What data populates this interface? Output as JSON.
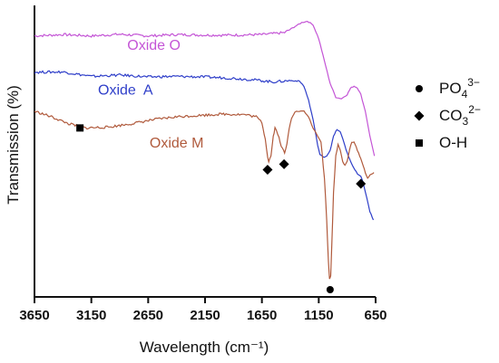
{
  "chart_data": {
    "type": "line",
    "title": "",
    "xlabel": "Wavelength (cm⁻¹)",
    "ylabel": "Transmission (%)",
    "x_reversed": true,
    "xlim": [
      3650,
      650
    ],
    "ylim": [
      0,
      100
    ],
    "x_ticks": [
      3650,
      3150,
      2650,
      2150,
      1650,
      1150,
      650
    ],
    "x_tick_labels": [
      "3650",
      "3150",
      "2650",
      "2150",
      "1650",
      "1150",
      "650"
    ],
    "y_ticks_shown": false,
    "grid": false,
    "series": [
      {
        "name": "Oxide O",
        "color": "#c455d6",
        "label_at": [
          2600,
          86
        ],
        "points": [
          [
            3650,
            91
          ],
          [
            3400,
            91.5
          ],
          [
            3150,
            91
          ],
          [
            2900,
            91.6
          ],
          [
            2650,
            91
          ],
          [
            2400,
            91.5
          ],
          [
            2150,
            91.3
          ],
          [
            1900,
            91.3
          ],
          [
            1650,
            91.5
          ],
          [
            1450,
            92.2
          ],
          [
            1300,
            95.8
          ],
          [
            1250,
            96.3
          ],
          [
            1200,
            95
          ],
          [
            1150,
            90
          ],
          [
            1100,
            82
          ],
          [
            1050,
            74
          ],
          [
            1000,
            69
          ],
          [
            950,
            68.5
          ],
          [
            900,
            70
          ],
          [
            870,
            72.3
          ],
          [
            840,
            73
          ],
          [
            810,
            72.4
          ],
          [
            780,
            70
          ],
          [
            740,
            64
          ],
          [
            700,
            55
          ],
          [
            660,
            48
          ]
        ]
      },
      {
        "name": "Oxide  A",
        "color": "#2f3fc9",
        "label_at": [
          2850,
          70
        ],
        "points": [
          [
            3650,
            78
          ],
          [
            3400,
            78.1
          ],
          [
            3150,
            76.5
          ],
          [
            2900,
            77
          ],
          [
            2650,
            76.3
          ],
          [
            2400,
            76.5
          ],
          [
            2150,
            76.3
          ],
          [
            1900,
            75.8
          ],
          [
            1700,
            75.2
          ],
          [
            1550,
            74.5
          ],
          [
            1400,
            75
          ],
          [
            1320,
            74.8
          ],
          [
            1280,
            73
          ],
          [
            1240,
            68
          ],
          [
            1200,
            61
          ],
          [
            1160,
            52
          ],
          [
            1140,
            48.5
          ],
          [
            1110,
            47.5
          ],
          [
            1080,
            48
          ],
          [
            1050,
            50
          ],
          [
            1020,
            55
          ],
          [
            990,
            57.5
          ],
          [
            960,
            56.5
          ],
          [
            930,
            53
          ],
          [
            900,
            49
          ],
          [
            870,
            46
          ],
          [
            840,
            43.5
          ],
          [
            810,
            41.5
          ],
          [
            780,
            40.5
          ],
          [
            760,
            38.5
          ],
          [
            740,
            35
          ],
          [
            700,
            28
          ],
          [
            670,
            25
          ]
        ]
      },
      {
        "name": "Oxide M",
        "color": "#b05a3c",
        "label_at": [
          2400,
          51
        ],
        "points": [
          [
            3650,
            64
          ],
          [
            3500,
            62
          ],
          [
            3350,
            59.5
          ],
          [
            3200,
            58
          ],
          [
            3000,
            58.3
          ],
          [
            2800,
            59.5
          ],
          [
            2600,
            61
          ],
          [
            2400,
            62
          ],
          [
            2200,
            62.5
          ],
          [
            2000,
            63
          ],
          [
            1800,
            62.8
          ],
          [
            1700,
            62
          ],
          [
            1650,
            60
          ],
          [
            1620,
            54
          ],
          [
            1600,
            48
          ],
          [
            1590,
            46
          ],
          [
            1570,
            48
          ],
          [
            1550,
            55
          ],
          [
            1535,
            58
          ],
          [
            1510,
            56
          ],
          [
            1490,
            53
          ],
          [
            1470,
            50.5
          ],
          [
            1450,
            49
          ],
          [
            1430,
            52
          ],
          [
            1410,
            58
          ],
          [
            1390,
            61.5
          ],
          [
            1360,
            63.8
          ],
          [
            1320,
            64
          ],
          [
            1280,
            64
          ],
          [
            1240,
            62
          ],
          [
            1200,
            58
          ],
          [
            1160,
            55
          ],
          [
            1130,
            53
          ],
          [
            1100,
            40
          ],
          [
            1080,
            25
          ],
          [
            1065,
            10
          ],
          [
            1055,
            4
          ],
          [
            1045,
            5
          ],
          [
            1035,
            16
          ],
          [
            1020,
            35
          ],
          [
            1000,
            48
          ],
          [
            980,
            52
          ],
          [
            960,
            50
          ],
          [
            940,
            46
          ],
          [
            920,
            44.5
          ],
          [
            900,
            46
          ],
          [
            880,
            50
          ],
          [
            860,
            53
          ],
          [
            840,
            53
          ],
          [
            820,
            51
          ],
          [
            800,
            49
          ],
          [
            780,
            47
          ],
          [
            760,
            44.5
          ],
          [
            740,
            42
          ],
          [
            720,
            40
          ],
          [
            700,
            41
          ],
          [
            680,
            41.5
          ],
          [
            665,
            42
          ]
        ]
      }
    ],
    "legend": {
      "placement": "right",
      "entries": [
        {
          "marker": "circle",
          "base": "PO",
          "sub": "4",
          "sup": "3−"
        },
        {
          "marker": "diamond",
          "base": "CO",
          "sub": "3",
          "sup": "2−"
        },
        {
          "marker": "square",
          "base": "O-H",
          "sub": "",
          "sup": ""
        }
      ]
    },
    "annotations": [
      {
        "marker": "square",
        "x": 3250,
        "y": 58
      },
      {
        "marker": "diamond",
        "x": 1600,
        "y": 43
      },
      {
        "marker": "diamond",
        "x": 1455,
        "y": 45
      },
      {
        "marker": "diamond",
        "x": 780,
        "y": 38
      },
      {
        "marker": "circle",
        "x": 1050,
        "y": 0
      }
    ]
  }
}
